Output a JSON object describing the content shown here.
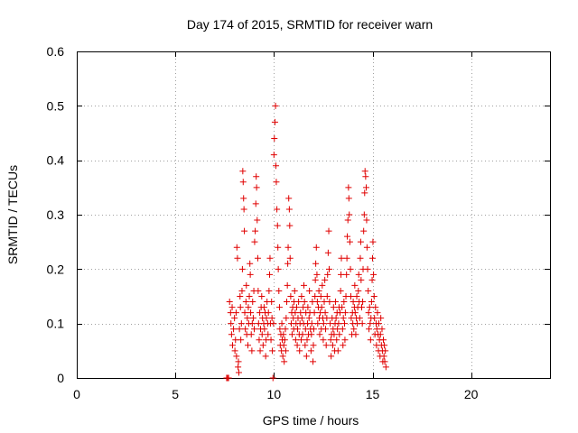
{
  "chart_data": {
    "type": "scatter",
    "title": "Day 174 of 2015, SRMTID for receiver warn",
    "xlabel": "GPS time / hours",
    "ylabel": "SRMTID / TECUs",
    "xlim": [
      0,
      24
    ],
    "ylim": [
      0,
      0.6
    ],
    "xticks": [
      "0",
      "5",
      "10",
      "15",
      "20"
    ],
    "yticks": [
      "0",
      "0.1",
      "0.2",
      "0.3",
      "0.4",
      "0.5",
      "0.6"
    ],
    "grid": true,
    "marker": "+",
    "series": [
      {
        "color": "#e00000",
        "points": [
          [
            7.6,
            0.0
          ],
          [
            7.65,
            0.0
          ],
          [
            7.7,
            0.0
          ],
          [
            7.75,
            0.14
          ],
          [
            7.8,
            0.12
          ],
          [
            7.82,
            0.1
          ],
          [
            7.85,
            0.08
          ],
          [
            7.88,
            0.13
          ],
          [
            7.9,
            0.06
          ],
          [
            7.95,
            0.09
          ],
          [
            8.0,
            0.11
          ],
          [
            8.02,
            0.05
          ],
          [
            8.05,
            0.07
          ],
          [
            8.08,
            0.12
          ],
          [
            8.1,
            0.04
          ],
          [
            8.12,
            0.24
          ],
          [
            8.15,
            0.22
          ],
          [
            8.18,
            0.02
          ],
          [
            8.2,
            0.03
          ],
          [
            8.22,
            0.01
          ],
          [
            8.25,
            0.09
          ],
          [
            8.28,
            0.15
          ],
          [
            8.3,
            0.13
          ],
          [
            8.32,
            0.07
          ],
          [
            8.35,
            0.1
          ],
          [
            8.38,
            0.16
          ],
          [
            8.4,
            0.2
          ],
          [
            8.42,
            0.38
          ],
          [
            8.44,
            0.36
          ],
          [
            8.46,
            0.33
          ],
          [
            8.48,
            0.31
          ],
          [
            8.5,
            0.27
          ],
          [
            8.52,
            0.12
          ],
          [
            8.55,
            0.09
          ],
          [
            8.58,
            0.14
          ],
          [
            8.6,
            0.17
          ],
          [
            8.62,
            0.08
          ],
          [
            8.65,
            0.11
          ],
          [
            8.68,
            0.06
          ],
          [
            8.7,
            0.13
          ],
          [
            8.72,
            0.1
          ],
          [
            8.75,
            0.15
          ],
          [
            8.78,
            0.21
          ],
          [
            8.8,
            0.19
          ],
          [
            8.82,
            0.12
          ],
          [
            8.85,
            0.08
          ],
          [
            8.88,
            0.05
          ],
          [
            8.9,
            0.1
          ],
          [
            8.92,
            0.14
          ],
          [
            8.95,
            0.11
          ],
          [
            8.98,
            0.16
          ],
          [
            9.0,
            0.09
          ],
          [
            9.02,
            0.25
          ],
          [
            9.05,
            0.27
          ],
          [
            9.08,
            0.32
          ],
          [
            9.1,
            0.37
          ],
          [
            9.12,
            0.35
          ],
          [
            9.15,
            0.29
          ],
          [
            9.18,
            0.22
          ],
          [
            9.2,
            0.16
          ],
          [
            9.22,
            0.1
          ],
          [
            9.25,
            0.07
          ],
          [
            9.28,
            0.12
          ],
          [
            9.3,
            0.05
          ],
          [
            9.32,
            0.09
          ],
          [
            9.35,
            0.13
          ],
          [
            9.38,
            0.15
          ],
          [
            9.4,
            0.08
          ],
          [
            9.42,
            0.11
          ],
          [
            9.45,
            0.06
          ],
          [
            9.48,
            0.1
          ],
          [
            9.5,
            0.13
          ],
          [
            9.52,
            0.09
          ],
          [
            9.55,
            0.12
          ],
          [
            9.58,
            0.04
          ],
          [
            9.6,
            0.07
          ],
          [
            9.62,
            0.11
          ],
          [
            9.65,
            0.14
          ],
          [
            9.68,
            0.1
          ],
          [
            9.7,
            0.08
          ],
          [
            9.72,
            0.12
          ],
          [
            9.75,
            0.16
          ],
          [
            9.78,
            0.19
          ],
          [
            9.8,
            0.22
          ],
          [
            9.82,
            0.1
          ],
          [
            9.85,
            0.07
          ],
          [
            9.88,
            0.14
          ],
          [
            9.9,
            0.11
          ],
          [
            9.92,
            0.05
          ],
          [
            9.95,
            0.0
          ],
          [
            9.98,
            0.1
          ],
          [
            10.0,
            0.41
          ],
          [
            10.02,
            0.44
          ],
          [
            10.05,
            0.47
          ],
          [
            10.08,
            0.5
          ],
          [
            10.1,
            0.39
          ],
          [
            10.12,
            0.36
          ],
          [
            10.15,
            0.31
          ],
          [
            10.18,
            0.28
          ],
          [
            10.2,
            0.24
          ],
          [
            10.22,
            0.2
          ],
          [
            10.25,
            0.16
          ],
          [
            10.28,
            0.13
          ],
          [
            10.3,
            0.09
          ],
          [
            10.32,
            0.06
          ],
          [
            10.35,
            0.08
          ],
          [
            10.38,
            0.05
          ],
          [
            10.4,
            0.1
          ],
          [
            10.42,
            0.07
          ],
          [
            10.45,
            0.04
          ],
          [
            10.48,
            0.08
          ],
          [
            10.5,
            0.06
          ],
          [
            10.52,
            0.03
          ],
          [
            10.55,
            0.07
          ],
          [
            10.58,
            0.09
          ],
          [
            10.6,
            0.05
          ],
          [
            10.62,
            0.11
          ],
          [
            10.65,
            0.14
          ],
          [
            10.68,
            0.17
          ],
          [
            10.7,
            0.21
          ],
          [
            10.72,
            0.24
          ],
          [
            10.75,
            0.33
          ],
          [
            10.78,
            0.31
          ],
          [
            10.8,
            0.28
          ],
          [
            10.82,
            0.22
          ],
          [
            10.85,
            0.15
          ],
          [
            10.88,
            0.1
          ],
          [
            10.9,
            0.12
          ],
          [
            10.92,
            0.08
          ],
          [
            10.95,
            0.13
          ],
          [
            10.98,
            0.11
          ],
          [
            11.0,
            0.09
          ],
          [
            11.02,
            0.14
          ],
          [
            11.05,
            0.16
          ],
          [
            11.08,
            0.12
          ],
          [
            11.1,
            0.07
          ],
          [
            11.12,
            0.1
          ],
          [
            11.15,
            0.13
          ],
          [
            11.18,
            0.06
          ],
          [
            11.2,
            0.09
          ],
          [
            11.22,
            0.11
          ],
          [
            11.25,
            0.14
          ],
          [
            11.28,
            0.08
          ],
          [
            11.3,
            0.05
          ],
          [
            11.32,
            0.1
          ],
          [
            11.35,
            0.12
          ],
          [
            11.38,
            0.07
          ],
          [
            11.4,
            0.15
          ],
          [
            11.42,
            0.11
          ],
          [
            11.45,
            0.08
          ],
          [
            11.48,
            0.13
          ],
          [
            11.5,
            0.1
          ],
          [
            11.52,
            0.17
          ],
          [
            11.55,
            0.14
          ],
          [
            11.58,
            0.06
          ],
          [
            11.6,
            0.09
          ],
          [
            11.62,
            0.12
          ],
          [
            11.65,
            0.04
          ],
          [
            11.68,
            0.07
          ],
          [
            11.7,
            0.1
          ],
          [
            11.72,
            0.13
          ],
          [
            11.75,
            0.08
          ],
          [
            11.78,
            0.11
          ],
          [
            11.8,
            0.16
          ],
          [
            11.82,
            0.12
          ],
          [
            11.85,
            0.09
          ],
          [
            11.88,
            0.05
          ],
          [
            11.9,
            0.08
          ],
          [
            11.92,
            0.1
          ],
          [
            11.95,
            0.14
          ],
          [
            11.98,
            0.03
          ],
          [
            12.0,
            0.06
          ],
          [
            12.02,
            0.09
          ],
          [
            12.05,
            0.12
          ],
          [
            12.08,
            0.15
          ],
          [
            12.1,
            0.18
          ],
          [
            12.12,
            0.21
          ],
          [
            12.15,
            0.24
          ],
          [
            12.18,
            0.19
          ],
          [
            12.2,
            0.14
          ],
          [
            12.22,
            0.1
          ],
          [
            12.25,
            0.13
          ],
          [
            12.28,
            0.16
          ],
          [
            12.3,
            0.11
          ],
          [
            12.32,
            0.08
          ],
          [
            12.35,
            0.12
          ],
          [
            12.38,
            0.15
          ],
          [
            12.4,
            0.09
          ],
          [
            12.42,
            0.13
          ],
          [
            12.45,
            0.17
          ],
          [
            12.48,
            0.11
          ],
          [
            12.5,
            0.07
          ],
          [
            12.52,
            0.1
          ],
          [
            12.55,
            0.14
          ],
          [
            12.58,
            0.18
          ],
          [
            12.6,
            0.12
          ],
          [
            12.62,
            0.09
          ],
          [
            12.65,
            0.06
          ],
          [
            12.68,
            0.11
          ],
          [
            12.7,
            0.15
          ],
          [
            12.72,
            0.19
          ],
          [
            12.75,
            0.23
          ],
          [
            12.78,
            0.27
          ],
          [
            12.8,
            0.2
          ],
          [
            12.82,
            0.14
          ],
          [
            12.85,
            0.1
          ],
          [
            12.88,
            0.07
          ],
          [
            12.9,
            0.04
          ],
          [
            12.92,
            0.08
          ],
          [
            12.95,
            0.11
          ],
          [
            12.98,
            0.06
          ],
          [
            13.0,
            0.09
          ],
          [
            13.02,
            0.13
          ],
          [
            13.05,
            0.08
          ],
          [
            13.08,
            0.05
          ],
          [
            13.1,
            0.1
          ],
          [
            13.12,
            0.14
          ],
          [
            13.15,
            0.11
          ],
          [
            13.18,
            0.07
          ],
          [
            13.2,
            0.12
          ],
          [
            13.22,
            0.09
          ],
          [
            13.25,
            0.05
          ],
          [
            13.28,
            0.1
          ],
          [
            13.3,
            0.13
          ],
          [
            13.32,
            0.08
          ],
          [
            13.35,
            0.12
          ],
          [
            13.38,
            0.16
          ],
          [
            13.4,
            0.19
          ],
          [
            13.42,
            0.22
          ],
          [
            13.45,
            0.13
          ],
          [
            13.48,
            0.09
          ],
          [
            13.5,
            0.06
          ],
          [
            13.52,
            0.11
          ],
          [
            13.55,
            0.14
          ],
          [
            13.58,
            0.1
          ],
          [
            13.6,
            0.07
          ],
          [
            13.62,
            0.12
          ],
          [
            13.65,
            0.15
          ],
          [
            13.68,
            0.19
          ],
          [
            13.7,
            0.22
          ],
          [
            13.72,
            0.26
          ],
          [
            13.75,
            0.29
          ],
          [
            13.78,
            0.35
          ],
          [
            13.8,
            0.33
          ],
          [
            13.82,
            0.3
          ],
          [
            13.85,
            0.25
          ],
          [
            13.88,
            0.2
          ],
          [
            13.9,
            0.15
          ],
          [
            13.92,
            0.11
          ],
          [
            13.95,
            0.08
          ],
          [
            13.98,
            0.12
          ],
          [
            14.0,
            0.1
          ],
          [
            14.02,
            0.14
          ],
          [
            14.05,
            0.09
          ],
          [
            14.08,
            0.13
          ],
          [
            14.1,
            0.17
          ],
          [
            14.12,
            0.12
          ],
          [
            14.15,
            0.08
          ],
          [
            14.18,
            0.11
          ],
          [
            14.2,
            0.15
          ],
          [
            14.22,
            0.1
          ],
          [
            14.25,
            0.13
          ],
          [
            14.28,
            0.16
          ],
          [
            14.3,
            0.19
          ],
          [
            14.32,
            0.14
          ],
          [
            14.35,
            0.11
          ],
          [
            14.38,
            0.22
          ],
          [
            14.4,
            0.25
          ],
          [
            14.42,
            0.18
          ],
          [
            14.45,
            0.13
          ],
          [
            14.48,
            0.1
          ],
          [
            14.5,
            0.14
          ],
          [
            14.52,
            0.2
          ],
          [
            14.55,
            0.27
          ],
          [
            14.58,
            0.3
          ],
          [
            14.6,
            0.34
          ],
          [
            14.62,
            0.38
          ],
          [
            14.65,
            0.37
          ],
          [
            14.68,
            0.35
          ],
          [
            14.7,
            0.29
          ],
          [
            14.72,
            0.24
          ],
          [
            14.75,
            0.2
          ],
          [
            14.78,
            0.16
          ],
          [
            14.8,
            0.12
          ],
          [
            14.82,
            0.09
          ],
          [
            14.85,
            0.13
          ],
          [
            14.88,
            0.1
          ],
          [
            14.9,
            0.07
          ],
          [
            14.92,
            0.11
          ],
          [
            14.95,
            0.14
          ],
          [
            14.98,
            0.18
          ],
          [
            15.0,
            0.22
          ],
          [
            15.02,
            0.25
          ],
          [
            15.05,
            0.19
          ],
          [
            15.08,
            0.15
          ],
          [
            15.1,
            0.11
          ],
          [
            15.12,
            0.08
          ],
          [
            15.15,
            0.13
          ],
          [
            15.18,
            0.1
          ],
          [
            15.2,
            0.06
          ],
          [
            15.22,
            0.09
          ],
          [
            15.25,
            0.12
          ],
          [
            15.28,
            0.08
          ],
          [
            15.3,
            0.05
          ],
          [
            15.32,
            0.1
          ],
          [
            15.35,
            0.07
          ],
          [
            15.38,
            0.04
          ],
          [
            15.4,
            0.08
          ],
          [
            15.42,
            0.11
          ],
          [
            15.45,
            0.06
          ],
          [
            15.48,
            0.09
          ],
          [
            15.5,
            0.05
          ],
          [
            15.52,
            0.03
          ],
          [
            15.55,
            0.07
          ],
          [
            15.58,
            0.04
          ],
          [
            15.6,
            0.06
          ],
          [
            15.62,
            0.03
          ],
          [
            15.65,
            0.05
          ],
          [
            15.68,
            0.02
          ]
        ]
      }
    ]
  }
}
